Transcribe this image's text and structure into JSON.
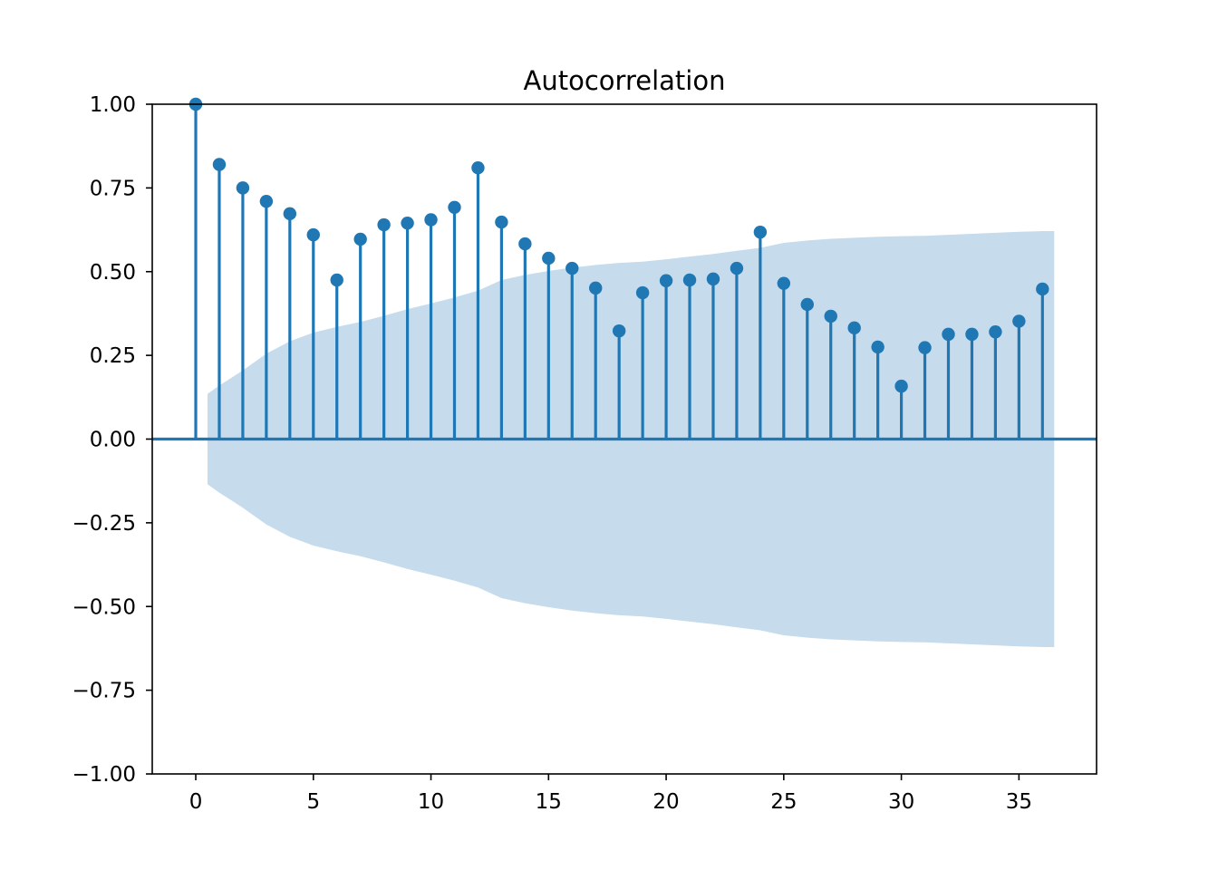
{
  "chart_data": {
    "type": "stem",
    "title": "Autocorrelation",
    "xlabel": "",
    "ylabel": "",
    "xlim": [
      -1.85,
      38.3
    ],
    "ylim": [
      -1.0,
      1.0
    ],
    "x_ticks": [
      0,
      5,
      10,
      15,
      20,
      25,
      30,
      35
    ],
    "y_ticks": [
      -1.0,
      -0.75,
      -0.5,
      -0.25,
      0.0,
      0.25,
      0.5,
      0.75,
      1.0
    ],
    "y_tick_labels": [
      "−1.00",
      "−0.75",
      "−0.50",
      "−0.25",
      "0.00",
      "0.25",
      "0.50",
      "0.75",
      "1.00"
    ],
    "lags": [
      0,
      1,
      2,
      3,
      4,
      5,
      6,
      7,
      8,
      9,
      10,
      11,
      12,
      13,
      14,
      15,
      16,
      17,
      18,
      19,
      20,
      21,
      22,
      23,
      24,
      25,
      26,
      27,
      28,
      29,
      30,
      31,
      32,
      33,
      34,
      35,
      36
    ],
    "values": [
      1.0,
      0.82,
      0.75,
      0.71,
      0.673,
      0.61,
      0.475,
      0.597,
      0.64,
      0.645,
      0.655,
      0.692,
      0.81,
      0.648,
      0.583,
      0.54,
      0.51,
      0.451,
      0.323,
      0.437,
      0.473,
      0.475,
      0.478,
      0.51,
      0.618,
      0.465,
      0.402,
      0.367,
      0.332,
      0.275,
      0.158,
      0.273,
      0.313,
      0.313,
      0.32,
      0.352,
      0.448
    ],
    "confidence_band": {
      "x": [
        0.5,
        1,
        2,
        3,
        4,
        5,
        6,
        7,
        8,
        9,
        10,
        11,
        12,
        13,
        14,
        15,
        16,
        17,
        18,
        19,
        20,
        21,
        22,
        23,
        24,
        25,
        26,
        27,
        28,
        29,
        30,
        31,
        32,
        33,
        34,
        35,
        36,
        36.5
      ],
      "upper": [
        0.135,
        0.16,
        0.205,
        0.255,
        0.292,
        0.318,
        0.335,
        0.35,
        0.368,
        0.388,
        0.405,
        0.423,
        0.443,
        0.475,
        0.49,
        0.502,
        0.512,
        0.52,
        0.526,
        0.53,
        0.537,
        0.545,
        0.553,
        0.562,
        0.571,
        0.586,
        0.593,
        0.598,
        0.601,
        0.604,
        0.606,
        0.607,
        0.61,
        0.613,
        0.616,
        0.619,
        0.621,
        0.621
      ]
    },
    "grid": false,
    "legend": "none",
    "colors": {
      "stem": "#1f77b4",
      "band": "#c6dbec",
      "zero_line": "#1f77b4"
    }
  }
}
